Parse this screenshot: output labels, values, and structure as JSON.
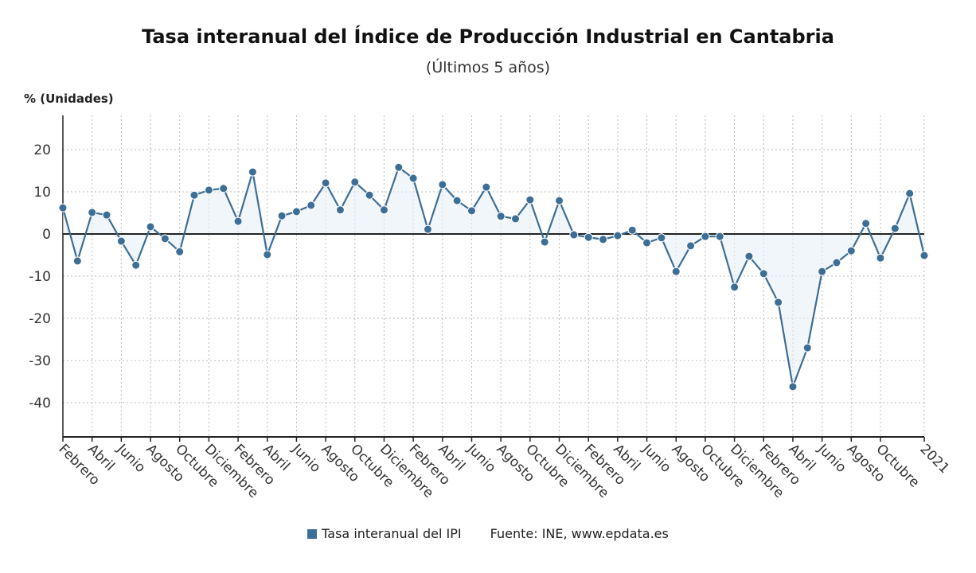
{
  "chart_data": {
    "type": "line",
    "title": "Tasa interanual del Índice de Producción Industrial en Cantabria",
    "subtitle": "(Últimos 5 años)",
    "ylabel": "% (Unidades)",
    "ylim": [
      -48,
      28
    ],
    "yticks": [
      20,
      10,
      0,
      -10,
      -20,
      -30,
      -40
    ],
    "grid": true,
    "xtick_labels": [
      "Febrero",
      "Abril",
      "Junio",
      "Agosto",
      "Octubre",
      "Diciembre",
      "Febrero",
      "Abril",
      "Junio",
      "Agosto",
      "Octubre",
      "Diciembre",
      "Febrero",
      "Abril",
      "Junio",
      "Agosto",
      "Octubre",
      "Diciembre",
      "Febrero",
      "Abril",
      "Junio",
      "Agosto",
      "Octubre",
      "Diciembre",
      "Febrero",
      "Abril",
      "Junio",
      "Agosto",
      "Octubre",
      "2021"
    ],
    "series": [
      {
        "name": "Tasa interanual del IPI",
        "color": "#3c6e96",
        "values": [
          6.2,
          -6.4,
          5.1,
          4.5,
          -1.7,
          -7.4,
          1.7,
          -1.1,
          -4.2,
          9.2,
          10.4,
          10.8,
          3.0,
          14.7,
          -4.9,
          4.3,
          5.3,
          6.8,
          12.1,
          5.7,
          12.3,
          9.2,
          5.7,
          15.8,
          13.2,
          1.1,
          11.7,
          7.9,
          5.5,
          11.1,
          4.2,
          3.6,
          8.1,
          -1.9,
          7.9,
          -0.2,
          -0.8,
          -1.3,
          -0.4,
          0.9,
          -2.1,
          -0.9,
          -8.9,
          -2.8,
          -0.6,
          -0.6,
          -12.6,
          -5.3,
          -9.4,
          -16.2,
          -36.2,
          -27.0,
          -8.9,
          -6.8,
          -4.0,
          2.5,
          -5.7,
          1.3,
          9.6,
          -5.1
        ]
      }
    ],
    "legend_placement": "bottom",
    "source": "Fuente: INE, www.epdata.es"
  }
}
